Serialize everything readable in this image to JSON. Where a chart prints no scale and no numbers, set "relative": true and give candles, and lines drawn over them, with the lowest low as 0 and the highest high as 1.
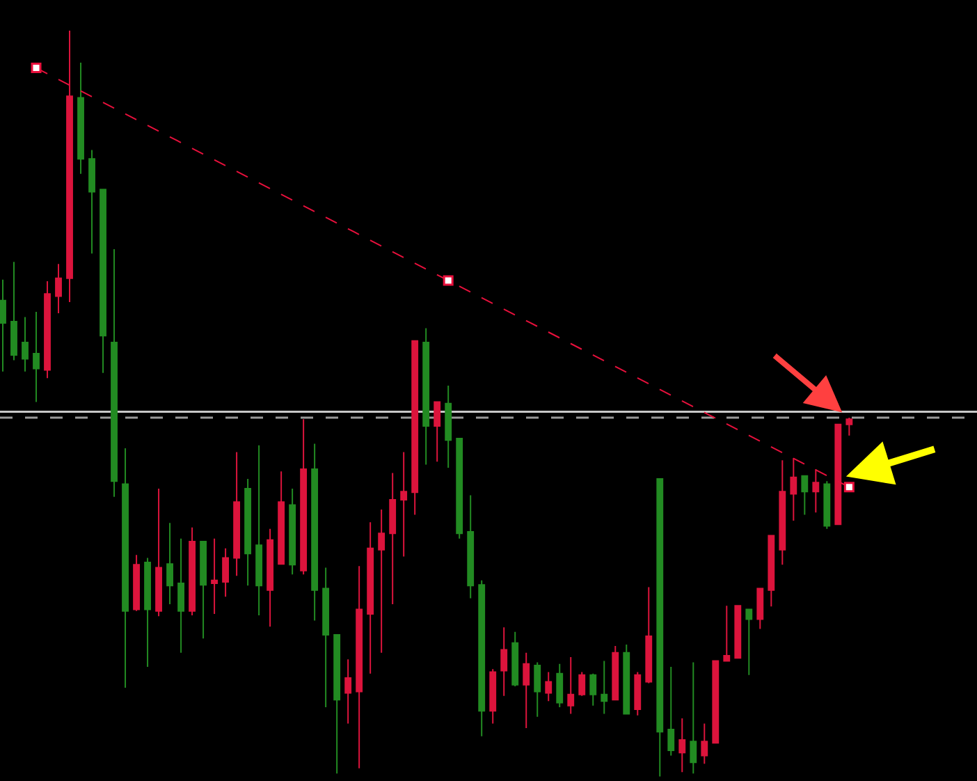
{
  "chart_data": {
    "type": "candlestick",
    "relative": true,
    "tick_labels": false,
    "grid": false,
    "categories": [
      null,
      null,
      null,
      null,
      null,
      null,
      null,
      null,
      null,
      null,
      null,
      null,
      null,
      null,
      null,
      null,
      null,
      null,
      null,
      null,
      null,
      null,
      null,
      null,
      null,
      null,
      null,
      null,
      null,
      null,
      null,
      null,
      null,
      null,
      null,
      null,
      null,
      null,
      null,
      null,
      null,
      null,
      null,
      null,
      null,
      null,
      null,
      null,
      null,
      null,
      null,
      null,
      null,
      null,
      null,
      null,
      null,
      null,
      null,
      null,
      null,
      null,
      null,
      null,
      null,
      null,
      null,
      null,
      null,
      null,
      null,
      null,
      null,
      null,
      null,
      null,
      null
    ],
    "ohlc": [
      [
        0.638,
        0.666,
        0.543,
        0.608
      ],
      [
        0.61,
        0.69,
        0.558,
        0.565
      ],
      [
        0.582,
        0.616,
        0.543,
        0.56
      ],
      [
        0.567,
        0.623,
        0.502,
        0.547
      ],
      [
        0.545,
        0.664,
        0.534,
        0.647
      ],
      [
        0.644,
        0.687,
        0.621,
        0.668
      ],
      [
        0.668,
        1,
        0.636,
        0.912
      ],
      [
        0.91,
        0.957,
        0.808,
        0.828
      ],
      [
        0.828,
        0.84,
        0.701,
        0.784
      ],
      [
        0.787,
        0.787,
        0.541,
        0.591
      ],
      [
        0.582,
        0.707,
        0.375,
        0.396
      ],
      [
        0.392,
        0.44,
        0.119,
        0.222
      ],
      [
        0.224,
        0.297,
        0.222,
        0.284
      ],
      [
        0.287,
        0.293,
        0.147,
        0.224
      ],
      [
        0.222,
        0.386,
        0.215,
        0.28
      ],
      [
        0.285,
        0.34,
        0.231,
        0.256
      ],
      [
        0.259,
        0.319,
        0.166,
        0.222
      ],
      [
        0.222,
        0.334,
        0.216,
        0.315
      ],
      [
        0.315,
        0.315,
        0.185,
        0.257
      ],
      [
        0.259,
        0.319,
        0.218,
        0.263
      ],
      [
        0.261,
        0.306,
        0.241,
        0.293
      ],
      [
        0.293,
        0.435,
        0.269,
        0.368
      ],
      [
        0.386,
        0.399,
        0.256,
        0.299
      ],
      [
        0.31,
        0.444,
        0.216,
        0.256
      ],
      [
        0.25,
        0.332,
        0.201,
        0.317
      ],
      [
        0.285,
        0.409,
        0.285,
        0.368
      ],
      [
        0.364,
        0.386,
        0.271,
        0.284
      ],
      [
        0.276,
        0.479,
        0.271,
        0.412
      ],
      [
        0.412,
        0.446,
        0.209,
        0.25
      ],
      [
        0.252,
        0.28,
        0.093,
        0.19
      ],
      [
        0.19,
        0.19,
        0.004,
        0.103
      ],
      [
        0.112,
        0.157,
        0.071,
        0.132
      ],
      [
        0.114,
        0.282,
        0.011,
        0.224
      ],
      [
        0.218,
        0.341,
        0.138,
        0.306
      ],
      [
        0.304,
        0.358,
        0.166,
        0.326
      ],
      [
        0.326,
        0.407,
        0.231,
        0.371
      ],
      [
        0.371,
        0.435,
        0.295,
        0.382
      ],
      [
        0.381,
        0.584,
        0.351,
        0.584
      ],
      [
        0.582,
        0.601,
        0.418,
        0.47
      ],
      [
        0.47,
        0.502,
        0.422,
        0.502
      ],
      [
        0.5,
        0.524,
        0.414,
        0.451
      ],
      [
        0.453,
        0.453,
        0.319,
        0.326
      ],
      [
        0.328,
        0.377,
        0.239,
        0.256
      ],
      [
        0.257,
        0.263,
        0.054,
        0.088
      ],
      [
        0.088,
        0.144,
        0.071,
        0.14
      ],
      [
        0.142,
        0.2,
        0.108,
        0.17
      ],
      [
        0.179,
        0.194,
        0.121,
        0.123
      ],
      [
        0.123,
        0.166,
        0.065,
        0.151
      ],
      [
        0.149,
        0.153,
        0.08,
        0.114
      ],
      [
        0.112,
        0.14,
        0.101,
        0.127
      ],
      [
        0.138,
        0.151,
        0.093,
        0.099
      ],
      [
        0.095,
        0.16,
        0.084,
        0.11
      ],
      [
        0.11,
        0.14,
        0.108,
        0.136
      ],
      [
        0.136,
        0.138,
        0.095,
        0.11
      ],
      [
        0.11,
        0.155,
        0.084,
        0.101
      ],
      [
        0.103,
        0.175,
        0.103,
        0.166
      ],
      [
        0.166,
        0.177,
        0.084,
        0.084
      ],
      [
        0.09,
        0.14,
        0.082,
        0.136
      ],
      [
        0.127,
        0.254,
        0.125,
        0.188
      ],
      [
        0.399,
        0.399,
        0,
        0.06
      ],
      [
        0.063,
        0.147,
        0.028,
        0.035
      ],
      [
        0.032,
        0.078,
        0.006,
        0.049
      ],
      [
        0.047,
        0.153,
        0.004,
        0.019
      ],
      [
        0.028,
        0.071,
        0.017,
        0.047
      ],
      [
        0.045,
        0.155,
        0.045,
        0.155
      ],
      [
        0.155,
        0.229,
        0.155,
        0.162
      ],
      [
        0.159,
        0.229,
        0.159,
        0.229
      ],
      [
        0.224,
        0.224,
        0.136,
        0.211
      ],
      [
        0.211,
        0.252,
        0.198,
        0.252
      ],
      [
        0.25,
        0.323,
        0.228,
        0.323
      ],
      [
        0.304,
        0.424,
        0.284,
        0.382
      ],
      [
        0.379,
        0.427,
        0.343,
        0.401
      ],
      [
        0.403,
        0.403,
        0.351,
        0.382
      ],
      [
        0.382,
        0.412,
        0.354,
        0.394
      ],
      [
        0.392,
        0.396,
        0.332,
        0.336
      ],
      [
        0.338,
        0.472,
        0.338,
        0.472
      ],
      [
        0.472,
        0.481,
        0.457,
        0.479
      ]
    ],
    "colors": [
      "#228b22",
      "#228b22",
      "#228b22",
      "#228b22",
      "#dc143c",
      "#dc143c",
      "#dc143c",
      "#228b22",
      "#228b22",
      "#228b22",
      "#228b22",
      "#228b22",
      "#dc143c",
      "#228b22",
      "#dc143c",
      "#228b22",
      "#228b22",
      "#dc143c",
      "#228b22",
      "#dc143c",
      "#dc143c",
      "#dc143c",
      "#228b22",
      "#228b22",
      "#dc143c",
      "#dc143c",
      "#228b22",
      "#dc143c",
      "#228b22",
      "#228b22",
      "#228b22",
      "#dc143c",
      "#dc143c",
      "#dc143c",
      "#dc143c",
      "#dc143c",
      "#dc143c",
      "#dc143c",
      "#228b22",
      "#dc143c",
      "#228b22",
      "#228b22",
      "#228b22",
      "#228b22",
      "#dc143c",
      "#dc143c",
      "#228b22",
      "#dc143c",
      "#228b22",
      "#dc143c",
      "#228b22",
      "#dc143c",
      "#dc143c",
      "#228b22",
      "#228b22",
      "#dc143c",
      "#228b22",
      "#dc143c",
      "#dc143c",
      "#228b22",
      "#228b22",
      "#dc143c",
      "#228b22",
      "#dc143c",
      "#dc143c",
      "#dc143c",
      "#dc143c",
      "#228b22",
      "#dc143c",
      "#dc143c",
      "#dc143c",
      "#dc143c",
      "#228b22",
      "#dc143c",
      "#228b22",
      "#dc143c",
      "#dc143c"
    ],
    "series": [
      {
        "type": "line",
        "color": "#e8103c",
        "values": [
          null,
          null,
          null,
          0.95,
          null,
          null,
          null,
          null,
          null,
          null,
          null,
          null,
          null,
          null,
          null,
          null,
          null,
          null,
          null,
          null,
          null,
          null,
          null,
          null,
          null,
          null,
          null,
          null,
          null,
          null,
          null,
          null,
          null,
          null,
          null,
          null,
          null,
          null,
          null,
          null,
          0.665,
          null,
          null,
          null,
          null,
          null,
          null,
          null,
          null,
          null,
          null,
          null,
          null,
          null,
          null,
          null,
          null,
          null,
          null,
          null,
          null,
          null,
          null,
          null,
          null,
          null,
          null,
          null,
          null,
          null,
          null,
          null,
          null,
          null,
          null,
          null,
          0.388
        ],
        "line_style": "dashed",
        "marker": "square"
      }
    ],
    "ref_lines": [
      {
        "axis": "y",
        "value": 0.489,
        "color": "#c8c8c8",
        "line_style": "solid"
      },
      {
        "axis": "y",
        "value": 0.481,
        "color": "#9a9a9a",
        "line_style": "dashed"
      }
    ]
  }
}
